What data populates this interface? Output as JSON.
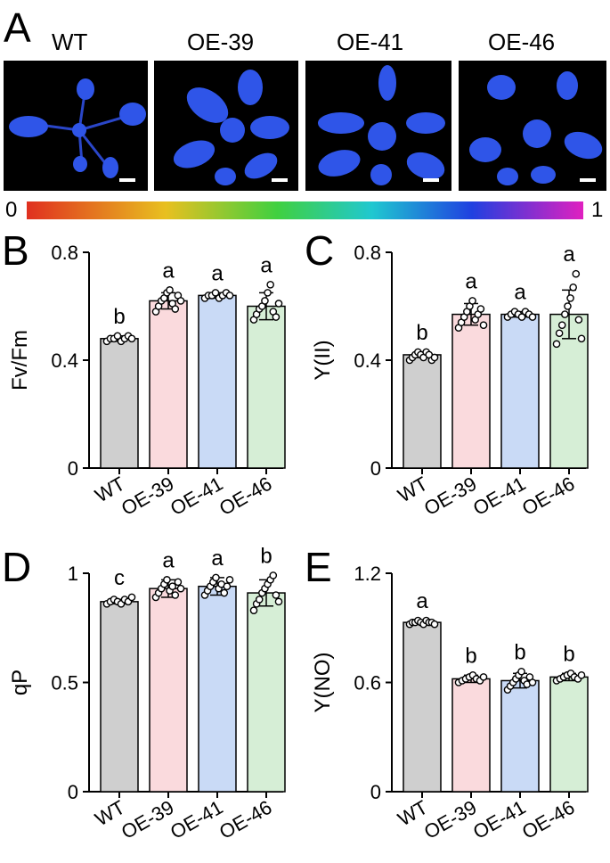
{
  "panelA": {
    "letter": "A",
    "labels": [
      "WT",
      "OE-39",
      "OE-41",
      "OE-46"
    ],
    "colorbar": {
      "min_label": "0",
      "max_label": "1"
    }
  },
  "colors": {
    "WT": "#cfcfcf",
    "OE-39": "#fadadd",
    "OE-41": "#c9daf6",
    "OE-46": "#d6eed6"
  },
  "chart_data": [
    {
      "letter": "B",
      "type": "bar",
      "categories": [
        "WT",
        "OE-39",
        "OE-41",
        "OE-46"
      ],
      "values": [
        0.48,
        0.62,
        0.64,
        0.6
      ],
      "errors": [
        0.01,
        0.03,
        0.01,
        0.05
      ],
      "points": [
        [
          0.47,
          0.48,
          0.48,
          0.49,
          0.47,
          0.48,
          0.49,
          0.48
        ],
        [
          0.58,
          0.6,
          0.62,
          0.63,
          0.65,
          0.66,
          0.61,
          0.59,
          0.64,
          0.62
        ],
        [
          0.63,
          0.64,
          0.64,
          0.65,
          0.63,
          0.64,
          0.65,
          0.64
        ],
        [
          0.55,
          0.57,
          0.59,
          0.6,
          0.62,
          0.65,
          0.68,
          0.58,
          0.56,
          0.61
        ]
      ],
      "letters": [
        "b",
        "a",
        "a",
        "a"
      ],
      "ylabel": "Fv/Fm",
      "ylim": [
        0,
        0.8
      ],
      "yticks": [
        "0",
        "0.4",
        "0.8"
      ]
    },
    {
      "letter": "C",
      "type": "bar",
      "categories": [
        "WT",
        "OE-39",
        "OE-41",
        "OE-46"
      ],
      "values": [
        0.42,
        0.57,
        0.57,
        0.57
      ],
      "errors": [
        0.01,
        0.04,
        0.01,
        0.09
      ],
      "points": [
        [
          0.4,
          0.41,
          0.42,
          0.43,
          0.42,
          0.41,
          0.43,
          0.42,
          0.4,
          0.41
        ],
        [
          0.52,
          0.54,
          0.56,
          0.58,
          0.6,
          0.62,
          0.55,
          0.57,
          0.59,
          0.53
        ],
        [
          0.56,
          0.57,
          0.58,
          0.57,
          0.56,
          0.58,
          0.57,
          0.56
        ],
        [
          0.46,
          0.5,
          0.53,
          0.57,
          0.6,
          0.63,
          0.67,
          0.72,
          0.55,
          0.48
        ]
      ],
      "letters": [
        "b",
        "a",
        "a",
        "a"
      ],
      "ylabel": "Y(II)",
      "ylim": [
        0,
        0.8
      ],
      "yticks": [
        "0",
        "0.4",
        "0.8"
      ]
    },
    {
      "letter": "D",
      "type": "bar",
      "categories": [
        "WT",
        "OE-39",
        "OE-41",
        "OE-46"
      ],
      "values": [
        0.87,
        0.93,
        0.94,
        0.91
      ],
      "errors": [
        0.01,
        0.04,
        0.04,
        0.06
      ],
      "points": [
        [
          0.86,
          0.87,
          0.88,
          0.87,
          0.86,
          0.88,
          0.87,
          0.89
        ],
        [
          0.89,
          0.91,
          0.93,
          0.95,
          0.97,
          0.92,
          0.94,
          0.9,
          0.96,
          0.93
        ],
        [
          0.9,
          0.92,
          0.94,
          0.96,
          0.98,
          0.93,
          0.95,
          0.91,
          0.94,
          0.97
        ],
        [
          0.83,
          0.86,
          0.88,
          0.91,
          0.93,
          0.95,
          0.97,
          0.99,
          0.9,
          0.87
        ]
      ],
      "letters": [
        "c",
        "a",
        "a",
        "b"
      ],
      "ylabel": "qP",
      "ylim": [
        0,
        1
      ],
      "yticks": [
        "0",
        "0.5",
        "1"
      ]
    },
    {
      "letter": "E",
      "type": "bar",
      "categories": [
        "WT",
        "OE-39",
        "OE-41",
        "OE-46"
      ],
      "values": [
        0.93,
        0.62,
        0.61,
        0.63
      ],
      "errors": [
        0.01,
        0.02,
        0.04,
        0.02
      ],
      "points": [
        [
          0.92,
          0.93,
          0.93,
          0.94,
          0.93,
          0.92,
          0.94,
          0.93,
          0.93,
          0.92
        ],
        [
          0.6,
          0.61,
          0.62,
          0.63,
          0.64,
          0.62,
          0.61,
          0.63
        ],
        [
          0.56,
          0.58,
          0.6,
          0.62,
          0.64,
          0.66,
          0.61,
          0.59,
          0.63,
          0.6
        ],
        [
          0.61,
          0.62,
          0.63,
          0.64,
          0.65,
          0.63,
          0.62,
          0.64
        ]
      ],
      "letters": [
        "a",
        "b",
        "b",
        "b"
      ],
      "ylabel": "Y(NO)",
      "ylim": [
        0,
        1.2
      ],
      "yticks": [
        "0",
        "0.6",
        "1.2"
      ]
    }
  ]
}
